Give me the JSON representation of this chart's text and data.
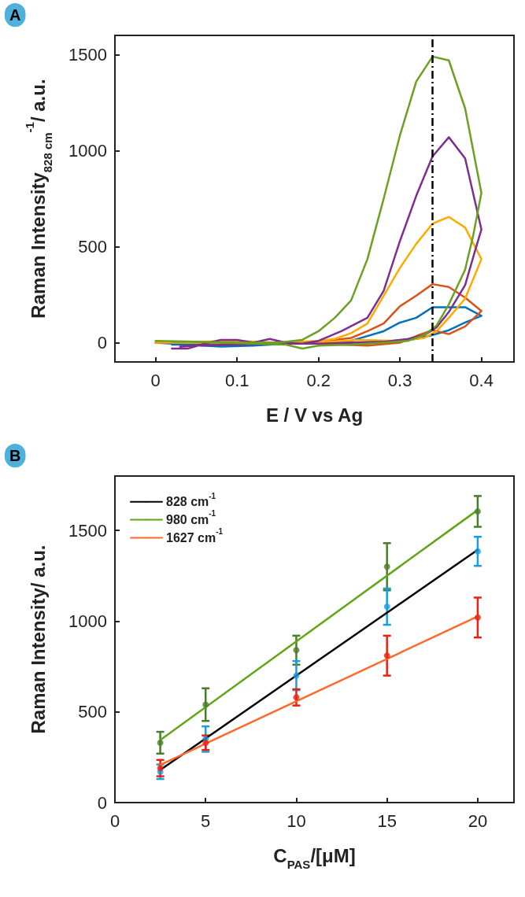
{
  "chart_data": [
    {
      "type": "line",
      "title": "A",
      "xlabel": "E / V vs Ag",
      "ylabel": "Raman Intensity$_{828 cm}$$^{-1}$/ a.u.",
      "xlim": [
        -0.05,
        0.44
      ],
      "xticks": [
        0,
        0.1,
        0.2,
        0.3,
        0.4
      ],
      "ylim": [
        -100,
        1600
      ],
      "yticks": [
        0,
        500,
        1000,
        1500
      ],
      "grid": false,
      "legend": false,
      "marker": "none",
      "line_style": "solid",
      "ref_lines": [
        {
          "axis": "x",
          "value": 0.34,
          "line_style": "dashed",
          "color": "#000000"
        }
      ],
      "series": [
        {
          "color": "#0072bd",
          "x": [
            0,
            0.04,
            0.08,
            0.12,
            0.16,
            0.2,
            0.24,
            0.28,
            0.3,
            0.32,
            0.34,
            0.38,
            0.4,
            0.38,
            0.36,
            0.34,
            0.32,
            0.28,
            0.24,
            0.2,
            0.1,
            0.02
          ],
          "values": [
            0,
            -10,
            -20,
            -15,
            -5,
            0,
            10,
            60,
            105,
            130,
            185,
            185,
            140,
            105,
            65,
            40,
            20,
            5,
            0,
            0,
            -10,
            -10
          ]
        },
        {
          "color": "#d95319",
          "x": [
            0,
            0.05,
            0.1,
            0.15,
            0.2,
            0.24,
            0.26,
            0.28,
            0.3,
            0.32,
            0.34,
            0.36,
            0.38,
            0.4,
            0.38,
            0.36,
            0.34,
            0.32,
            0.3,
            0.26,
            0.2
          ],
          "values": [
            0,
            0,
            -5,
            0,
            5,
            25,
            60,
            100,
            190,
            245,
            305,
            290,
            235,
            165,
            85,
            45,
            65,
            35,
            0,
            -15,
            -5
          ]
        },
        {
          "color": "#ffaa00",
          "x": [
            0,
            0.05,
            0.1,
            0.15,
            0.2,
            0.22,
            0.24,
            0.26,
            0.28,
            0.3,
            0.32,
            0.34,
            0.36,
            0.38,
            0.4,
            0.38,
            0.36,
            0.345,
            0.33,
            0.3,
            0.25,
            0.2,
            0.1,
            0.02
          ],
          "values": [
            0,
            5,
            10,
            0,
            10,
            20,
            50,
            100,
            245,
            390,
            515,
            620,
            655,
            600,
            435,
            230,
            130,
            60,
            25,
            10,
            15,
            0,
            0,
            0
          ]
        },
        {
          "color": "#7e2f8e",
          "x": [
            0.02,
            0.04,
            0.06,
            0.08,
            0.1,
            0.12,
            0.14,
            0.16,
            0.18,
            0.2,
            0.228,
            0.26,
            0.28,
            0.3,
            0.32,
            0.34,
            0.36,
            0.38,
            0.4,
            0.393,
            0.38,
            0.36,
            0.345,
            0.33,
            0.31,
            0.28,
            0.24,
            0.2,
            0.15,
            0.1,
            0.05,
            0.03
          ],
          "values": [
            -30,
            -30,
            -5,
            15,
            15,
            0,
            20,
            0,
            -5,
            10,
            60,
            130,
            270,
            530,
            765,
            970,
            1070,
            960,
            590,
            490,
            300,
            160,
            80,
            40,
            20,
            5,
            0,
            -5,
            -5,
            -10,
            -15,
            -20
          ]
        },
        {
          "color": "#6aa121",
          "x": [
            0,
            0.05,
            0.1,
            0.15,
            0.18,
            0.2,
            0.22,
            0.24,
            0.26,
            0.28,
            0.3,
            0.32,
            0.34,
            0.36,
            0.38,
            0.4,
            0.39,
            0.38,
            0.36,
            0.345,
            0.33,
            0.31,
            0.28,
            0.24,
            0.2,
            0.18,
            0.16,
            0.12,
            0.08,
            0.04,
            0.02
          ],
          "values": [
            10,
            5,
            0,
            0,
            15,
            60,
            130,
            220,
            435,
            750,
            1080,
            1360,
            1490,
            1470,
            1220,
            780,
            560,
            380,
            200,
            90,
            40,
            10,
            0,
            -10,
            -15,
            -30,
            -10,
            -5,
            0,
            5,
            5
          ]
        }
      ]
    },
    {
      "type": "scatter",
      "title": "B",
      "xlabel": "C$_{PAS}$/[μM]",
      "ylabel": "Raman Intensity/ a.u.",
      "xlim": [
        0,
        22
      ],
      "xticks": [
        0,
        5,
        10,
        15,
        20
      ],
      "ylim": [
        0,
        1800
      ],
      "yticks": [
        0,
        500,
        1000,
        1500
      ],
      "grid": false,
      "legend": "top left",
      "marker": "circle",
      "series": [
        {
          "name": "828 cm$^{-1}$",
          "type": "line",
          "marker": "none",
          "color": "#000000",
          "x": [
            2.5,
            20
          ],
          "values": [
            180,
            1393
          ]
        },
        {
          "name": "980 cm$^{-1}$",
          "type": "line",
          "marker": "none",
          "color": "#5ea614",
          "x": [
            2.5,
            20
          ],
          "values": [
            345,
            1613
          ]
        },
        {
          "name": "1627 cm$^{-1}$",
          "type": "line",
          "marker": "none",
          "color": "#ff6a2b",
          "x": [
            2.5,
            20
          ],
          "values": [
            208,
            1026
          ]
        },
        {
          "type": "scatter",
          "color": "#4a7c2c",
          "x": [
            2.5,
            5,
            10,
            15,
            20
          ],
          "values": [
            330,
            540,
            840,
            1300,
            1605
          ],
          "errors": [
            60,
            90,
            80,
            130,
            85
          ]
        },
        {
          "type": "scatter",
          "color": "#1a9ce0",
          "x": [
            2.5,
            5,
            10,
            15,
            20
          ],
          "values": [
            170,
            350,
            700,
            1080,
            1385
          ],
          "errors": [
            40,
            70,
            80,
            100,
            80
          ]
        },
        {
          "type": "scatter",
          "color": "#e8220f",
          "x": [
            2.5,
            5,
            10,
            15,
            20
          ],
          "values": [
            190,
            330,
            580,
            810,
            1020
          ],
          "errors": [
            45,
            40,
            45,
            110,
            110
          ]
        }
      ]
    }
  ]
}
